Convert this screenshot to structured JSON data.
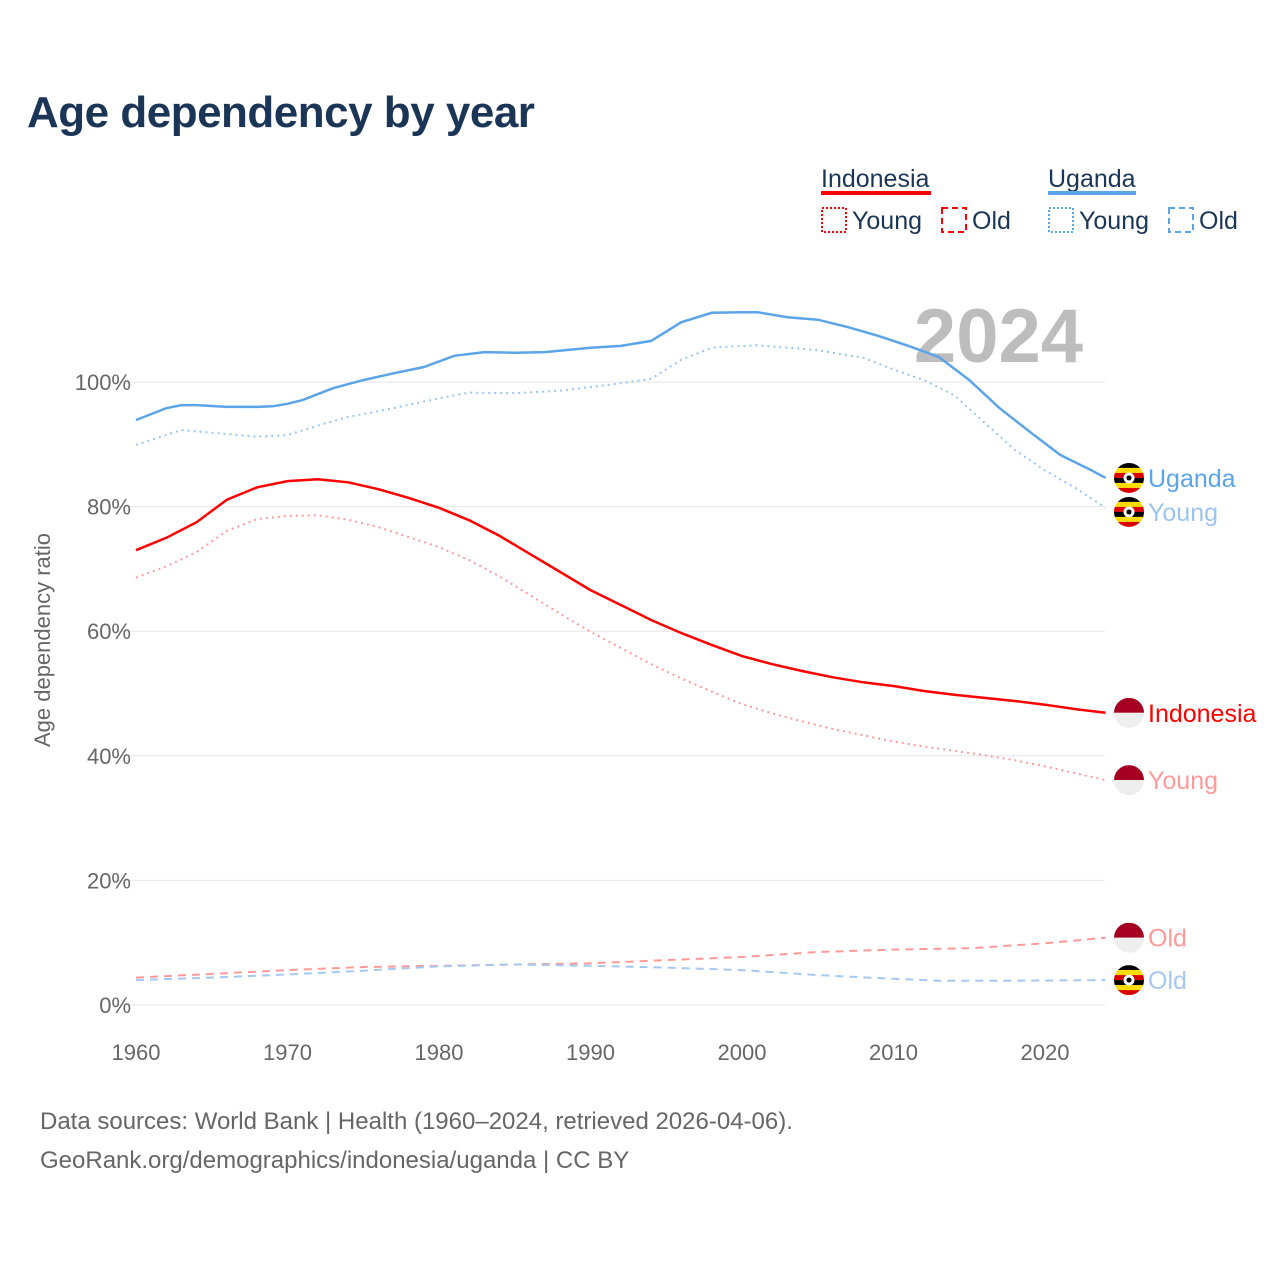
{
  "chart_data": {
    "type": "line",
    "title": "Age dependency by year",
    "xlabel": "",
    "ylabel": "Age dependency ratio",
    "xlim": [
      1960,
      2024
    ],
    "ylim": [
      0,
      110
    ],
    "x_ticks": [
      "1960",
      "1970",
      "1980",
      "1990",
      "2000",
      "2010",
      "2020"
    ],
    "y_ticks": [
      "0%",
      "20%",
      "40%",
      "60%",
      "80%",
      "100%"
    ],
    "y_tick_values": [
      0,
      20,
      40,
      60,
      80,
      100
    ],
    "grid": true,
    "year_label": "2024",
    "legend": {
      "placement": "top-right",
      "groups": [
        {
          "country": "Indonesia",
          "color": "#ff0000",
          "young": "Young",
          "old": "Old",
          "light": "#ff9a9a"
        },
        {
          "country": "Uganda",
          "color": "#5ba4e8",
          "young": "Young",
          "old": "Old",
          "light": "#9cc4f0"
        }
      ]
    },
    "series": [
      {
        "name": "Uganda",
        "label": "Uganda",
        "country": "uganda",
        "style": "solid",
        "color": "#5ba4e8",
        "points": [
          [
            1960,
            93.9
          ],
          [
            1962,
            95.8
          ],
          [
            1963,
            96.3
          ],
          [
            1964,
            96.3
          ],
          [
            1966,
            96.0
          ],
          [
            1968,
            96.0
          ],
          [
            1969,
            96.1
          ],
          [
            1970,
            96.5
          ],
          [
            1971,
            97.1
          ],
          [
            1973,
            99.0
          ],
          [
            1975,
            100.3
          ],
          [
            1977,
            101.4
          ],
          [
            1979,
            102.4
          ],
          [
            1981,
            104.2
          ],
          [
            1983,
            104.8
          ],
          [
            1985,
            104.7
          ],
          [
            1987,
            104.8
          ],
          [
            1990,
            105.5
          ],
          [
            1992,
            105.8
          ],
          [
            1994,
            106.6
          ],
          [
            1996,
            109.6
          ],
          [
            1998,
            111.1
          ],
          [
            2000,
            111.2
          ],
          [
            2001,
            111.2
          ],
          [
            2003,
            110.4
          ],
          [
            2005,
            110.0
          ],
          [
            2007,
            108.8
          ],
          [
            2009,
            107.4
          ],
          [
            2011,
            105.8
          ],
          [
            2013,
            104.0
          ],
          [
            2015,
            100.3
          ],
          [
            2017,
            95.8
          ],
          [
            2019,
            92.0
          ],
          [
            2021,
            88.3
          ],
          [
            2023,
            85.9
          ],
          [
            2024,
            84.6
          ]
        ]
      },
      {
        "name": "Uganda Young",
        "label": "Young",
        "country": "uganda",
        "style": "dotted",
        "color": "#9cc4f0",
        "points": [
          [
            1960,
            89.9
          ],
          [
            1963,
            92.3
          ],
          [
            1968,
            91.2
          ],
          [
            1970,
            91.5
          ],
          [
            1972,
            93.0
          ],
          [
            1974,
            94.4
          ],
          [
            1977,
            95.8
          ],
          [
            1980,
            97.4
          ],
          [
            1982,
            98.3
          ],
          [
            1985,
            98.2
          ],
          [
            1988,
            98.6
          ],
          [
            1990,
            99.2
          ],
          [
            1992,
            99.8
          ],
          [
            1994,
            100.5
          ],
          [
            1996,
            103.6
          ],
          [
            1998,
            105.5
          ],
          [
            2001,
            105.9
          ],
          [
            2005,
            105.1
          ],
          [
            2008,
            103.9
          ],
          [
            2010,
            102.0
          ],
          [
            2012,
            100.3
          ],
          [
            2014,
            97.9
          ],
          [
            2016,
            93.5
          ],
          [
            2018,
            89.1
          ],
          [
            2020,
            85.8
          ],
          [
            2022,
            83.0
          ],
          [
            2024,
            79.8
          ]
        ]
      },
      {
        "name": "Indonesia",
        "label": "Indonesia",
        "country": "indonesia",
        "style": "solid",
        "color": "#ff0000",
        "points": [
          [
            1960,
            73.0
          ],
          [
            1962,
            75.0
          ],
          [
            1964,
            77.5
          ],
          [
            1966,
            81.1
          ],
          [
            1968,
            83.1
          ],
          [
            1970,
            84.1
          ],
          [
            1972,
            84.4
          ],
          [
            1974,
            83.9
          ],
          [
            1976,
            82.8
          ],
          [
            1978,
            81.4
          ],
          [
            1980,
            79.8
          ],
          [
            1982,
            77.8
          ],
          [
            1984,
            75.3
          ],
          [
            1986,
            72.4
          ],
          [
            1988,
            69.5
          ],
          [
            1990,
            66.6
          ],
          [
            1992,
            64.2
          ],
          [
            1994,
            61.8
          ],
          [
            1996,
            59.7
          ],
          [
            1998,
            57.8
          ],
          [
            2000,
            56.0
          ],
          [
            2002,
            54.7
          ],
          [
            2004,
            53.6
          ],
          [
            2006,
            52.6
          ],
          [
            2008,
            51.8
          ],
          [
            2010,
            51.2
          ],
          [
            2012,
            50.4
          ],
          [
            2014,
            49.8
          ],
          [
            2016,
            49.3
          ],
          [
            2018,
            48.8
          ],
          [
            2020,
            48.2
          ],
          [
            2022,
            47.5
          ],
          [
            2024,
            46.9
          ]
        ]
      },
      {
        "name": "Indonesia Young",
        "label": "Young",
        "country": "indonesia",
        "style": "dotted",
        "color": "#ff9a9a",
        "points": [
          [
            1960,
            68.6
          ],
          [
            1962,
            70.4
          ],
          [
            1964,
            72.7
          ],
          [
            1966,
            76.1
          ],
          [
            1968,
            78.0
          ],
          [
            1970,
            78.5
          ],
          [
            1972,
            78.6
          ],
          [
            1974,
            77.9
          ],
          [
            1976,
            76.7
          ],
          [
            1978,
            75.1
          ],
          [
            1980,
            73.5
          ],
          [
            1982,
            71.4
          ],
          [
            1984,
            68.8
          ],
          [
            1986,
            65.8
          ],
          [
            1988,
            62.8
          ],
          [
            1990,
            59.9
          ],
          [
            1992,
            57.3
          ],
          [
            1994,
            54.7
          ],
          [
            1996,
            52.4
          ],
          [
            1998,
            50.3
          ],
          [
            2000,
            48.3
          ],
          [
            2002,
            46.8
          ],
          [
            2004,
            45.5
          ],
          [
            2006,
            44.3
          ],
          [
            2008,
            43.3
          ],
          [
            2010,
            42.3
          ],
          [
            2012,
            41.5
          ],
          [
            2014,
            40.8
          ],
          [
            2016,
            40.1
          ],
          [
            2018,
            39.3
          ],
          [
            2020,
            38.3
          ],
          [
            2022,
            37.2
          ],
          [
            2024,
            36.1
          ]
        ]
      },
      {
        "name": "Indonesia Old",
        "label": "Old",
        "country": "indonesia",
        "style": "dashed",
        "color": "#ff9a9a",
        "points": [
          [
            1960,
            4.4
          ],
          [
            1965,
            5.0
          ],
          [
            1970,
            5.6
          ],
          [
            1975,
            6.1
          ],
          [
            1980,
            6.3
          ],
          [
            1985,
            6.5
          ],
          [
            1990,
            6.7
          ],
          [
            1995,
            7.2
          ],
          [
            2000,
            7.7
          ],
          [
            2005,
            8.5
          ],
          [
            2010,
            8.9
          ],
          [
            2015,
            9.1
          ],
          [
            2020,
            9.9
          ],
          [
            2024,
            10.8
          ]
        ]
      },
      {
        "name": "Uganda Old",
        "label": "Old",
        "country": "uganda",
        "style": "dashed",
        "color": "#a6c8f0",
        "points": [
          [
            1960,
            4.0
          ],
          [
            1965,
            4.4
          ],
          [
            1970,
            4.9
          ],
          [
            1975,
            5.5
          ],
          [
            1980,
            6.2
          ],
          [
            1985,
            6.5
          ],
          [
            1990,
            6.3
          ],
          [
            1995,
            6.0
          ],
          [
            2000,
            5.6
          ],
          [
            2005,
            4.8
          ],
          [
            2010,
            4.2
          ],
          [
            2013,
            3.9
          ],
          [
            2018,
            3.9
          ],
          [
            2024,
            4.0
          ]
        ]
      }
    ]
  },
  "source_line1": "Data sources: World Bank | Health (1960–2024, retrieved 2026-04-06).",
  "source_line2": "GeoRank.org/demographics/indonesia/uganda | CC BY"
}
